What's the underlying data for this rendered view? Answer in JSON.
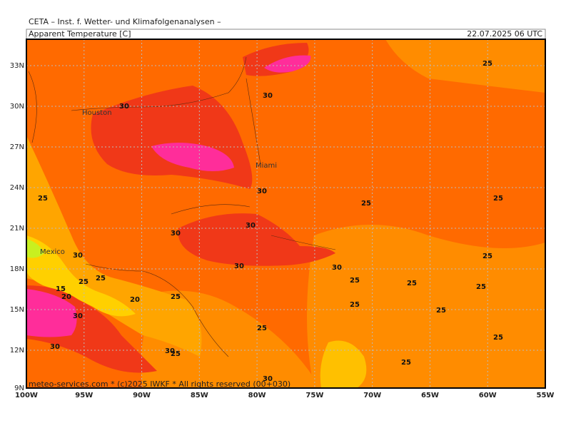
{
  "header": {
    "title": "CETA – Inst. f. Wetter- und Klimafolgenanalysen –",
    "parameter": "Apparent Temperature [C]",
    "valid_time": "22.07.2025 06 UTC"
  },
  "lat_labels": [
    "33N",
    "30N",
    "27N",
    "24N",
    "21N",
    "18N",
    "15N",
    "12N",
    "9N"
  ],
  "lon_labels": [
    "100W",
    "95W",
    "90W",
    "85W",
    "80W",
    "75W",
    "70W",
    "65W",
    "60W",
    "55W"
  ],
  "cities": [
    "Houston",
    "Miami",
    "Mexico"
  ],
  "contour_labels": [
    30,
    30,
    25,
    30,
    25,
    25,
    25,
    30,
    30,
    30,
    25,
    30,
    30,
    25,
    25,
    25,
    25,
    25,
    15,
    20,
    20,
    25,
    25,
    25,
    30,
    25,
    25,
    30,
    30,
    25,
    25,
    30
  ],
  "footer": "meteo-services.com * (c)2025 IWKF * All rights reserved (00+030)"
}
